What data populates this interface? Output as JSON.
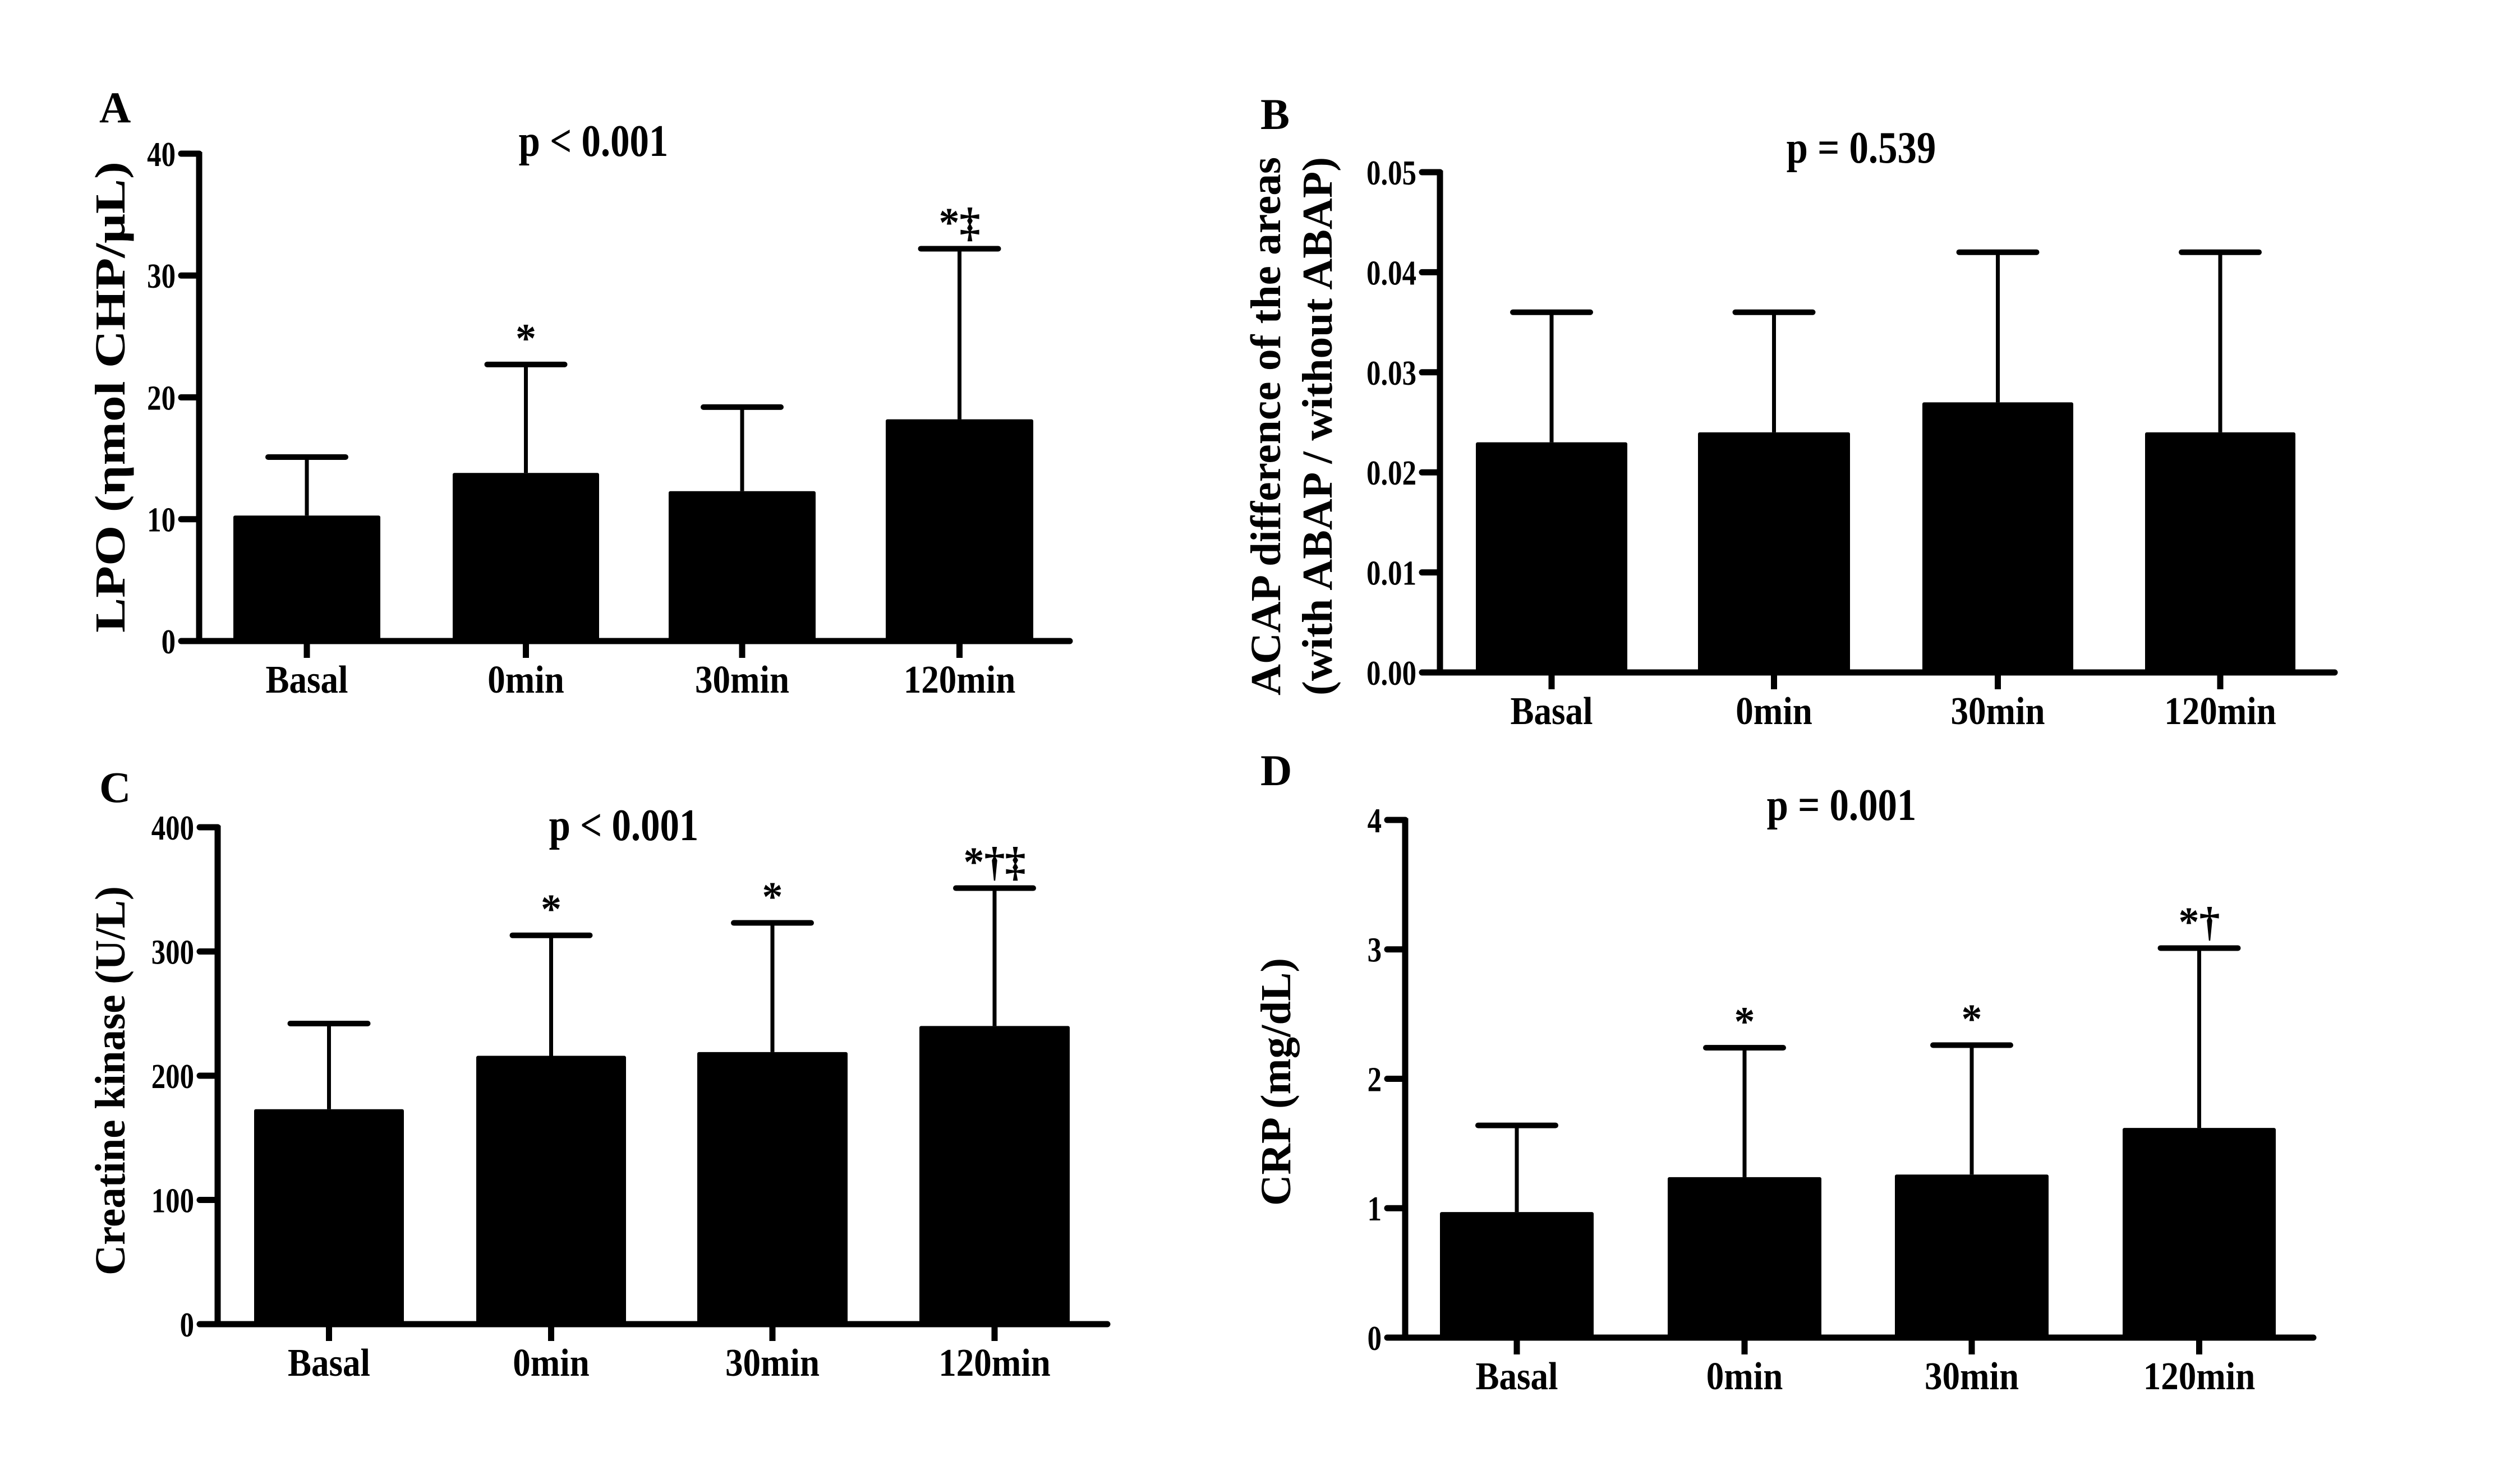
{
  "colors": {
    "bar": "#000000",
    "axis": "#000000",
    "background": "#ffffff"
  },
  "chart_data": [
    {
      "type": "bar",
      "panel_letter": "A",
      "title": "p < 0.001",
      "xlabel": "",
      "ylabel": "LPO (ηmol CHP/μL)",
      "categories": [
        "Basal",
        "0min",
        "30min",
        "120min"
      ],
      "values": [
        10.3,
        13.8,
        12.3,
        18.2
      ],
      "error_upper": [
        15.1,
        22.7,
        19.2,
        32.2
      ],
      "annotations": [
        "",
        "*",
        "",
        "*‡"
      ],
      "ylim": [
        0,
        40
      ],
      "yticks": [
        0,
        10,
        20,
        30,
        40
      ],
      "ytick_labels": [
        "0",
        "10",
        "20",
        "30",
        "40"
      ],
      "grid": false,
      "legend": "none"
    },
    {
      "type": "bar",
      "panel_letter": "B",
      "title": "p = 0.539",
      "xlabel": "",
      "ylabel": [
        "ACAP difference of the areas",
        "(with ABAP / without ABAP)"
      ],
      "categories": [
        "Basal",
        "0min",
        "30min",
        "120min"
      ],
      "values": [
        0.023,
        0.024,
        0.027,
        0.024
      ],
      "error_upper": [
        0.036,
        0.036,
        0.042,
        0.042
      ],
      "annotations": [
        "",
        "",
        "",
        ""
      ],
      "ylim": [
        0,
        0.05
      ],
      "yticks": [
        0,
        0.01,
        0.02,
        0.03,
        0.04,
        0.05
      ],
      "ytick_labels": [
        "0.00",
        "0.01",
        "0.02",
        "0.03",
        "0.04",
        "0.05"
      ],
      "grid": false,
      "legend": "none"
    },
    {
      "type": "bar",
      "panel_letter": "C",
      "title": "p < 0.001",
      "xlabel": "",
      "ylabel": "Creatine kinase (U/L)",
      "categories": [
        "Basal",
        "0min",
        "30min",
        "120min"
      ],
      "values": [
        173,
        216,
        219,
        240
      ],
      "error_upper": [
        242,
        313,
        323,
        351
      ],
      "annotations": [
        "",
        "*",
        "*",
        "*†‡"
      ],
      "ylim": [
        0,
        400
      ],
      "yticks": [
        0,
        100,
        200,
        300,
        400
      ],
      "ytick_labels": [
        "0",
        "100",
        "200",
        "300",
        "400"
      ],
      "grid": false,
      "legend": "none"
    },
    {
      "type": "bar",
      "panel_letter": "D",
      "title": "p = 0.001",
      "xlabel": "",
      "ylabel": "CRP (mg/dL)",
      "categories": [
        "Basal",
        "0min",
        "30min",
        "120min"
      ],
      "values": [
        0.97,
        1.24,
        1.26,
        1.62
      ],
      "error_upper": [
        1.64,
        2.24,
        2.26,
        3.01
      ],
      "annotations": [
        "",
        "*",
        "*",
        "*†"
      ],
      "ylim": [
        0,
        4
      ],
      "yticks": [
        0,
        1,
        2,
        3,
        4
      ],
      "ytick_labels": [
        "0",
        "1",
        "2",
        "3",
        "4"
      ],
      "grid": false,
      "legend": "none"
    }
  ]
}
